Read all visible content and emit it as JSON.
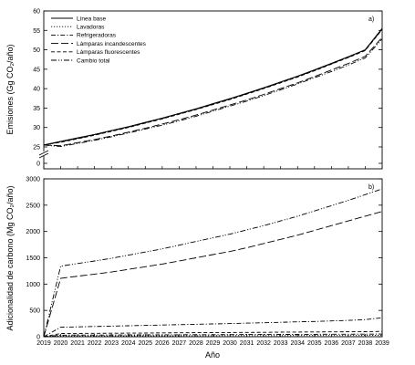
{
  "chart_data": [
    {
      "type": "line",
      "panel_label": "a)",
      "ylabel": "Emisiones (Gg CO₂/año)",
      "xlabel": "",
      "xlim": [
        2019,
        2039
      ],
      "ylim": [
        20,
        60
      ],
      "y_axis_break": true,
      "y_ticks": [
        0,
        25,
        30,
        35,
        40,
        45,
        50,
        55,
        60
      ],
      "legend_position": "top-left",
      "x": [
        2019,
        2020,
        2021,
        2022,
        2023,
        2024,
        2025,
        2026,
        2027,
        2028,
        2029,
        2030,
        2031,
        2032,
        2033,
        2034,
        2035,
        2036,
        2037,
        2038,
        2039
      ],
      "series": [
        {
          "name": "Línea base",
          "dash": "solid",
          "values": [
            25.5,
            26.4,
            27.3,
            28.2,
            29.2,
            30.2,
            31.3,
            32.4,
            33.6,
            34.8,
            36.1,
            37.4,
            38.8,
            40.2,
            41.7,
            43.2,
            44.8,
            46.5,
            48.2,
            50.0,
            55.5
          ]
        },
        {
          "name": "Lavadoras",
          "dash": "dot",
          "values": [
            25.5,
            26.4,
            27.3,
            28.2,
            29.2,
            30.2,
            31.3,
            32.4,
            33.6,
            34.8,
            36.1,
            37.4,
            38.8,
            40.2,
            41.7,
            43.2,
            44.8,
            46.5,
            48.2,
            50.0,
            55.4
          ]
        },
        {
          "name": "Refrigeradoras",
          "dash": "dashdot",
          "values": [
            25.5,
            26.3,
            27.2,
            28.1,
            29.1,
            30.1,
            31.2,
            32.3,
            33.5,
            34.7,
            36.0,
            37.3,
            38.7,
            40.1,
            41.6,
            43.1,
            44.7,
            46.4,
            48.1,
            49.9,
            55.3
          ]
        },
        {
          "name": "Lámparas incandescentes",
          "dash": "longdash",
          "values": [
            25.5,
            25.3,
            26.1,
            26.9,
            27.8,
            28.8,
            29.8,
            30.9,
            32.0,
            33.2,
            34.5,
            35.8,
            37.1,
            38.5,
            40.0,
            41.5,
            43.1,
            44.8,
            46.5,
            48.3,
            53.2
          ]
        },
        {
          "name": "Lámparas fluorescentes",
          "dash": "dash",
          "values": [
            25.5,
            26.2,
            27.1,
            28.0,
            29.0,
            30.0,
            31.1,
            32.2,
            33.4,
            34.6,
            35.9,
            37.2,
            38.6,
            40.0,
            41.5,
            43.0,
            44.6,
            46.3,
            48.0,
            49.8,
            55.2
          ]
        },
        {
          "name": "Cambio total",
          "dash": "dashdotdot",
          "values": [
            25.5,
            25.1,
            25.9,
            26.7,
            27.6,
            28.6,
            29.6,
            30.6,
            31.7,
            32.9,
            34.2,
            35.5,
            36.8,
            38.2,
            39.7,
            41.2,
            42.8,
            44.4,
            46.1,
            47.9,
            52.8
          ]
        }
      ]
    },
    {
      "type": "line",
      "panel_label": "b)",
      "ylabel": "Adicionalidad de carbono (Mg CO₂/año)",
      "xlabel": "Año",
      "xlim": [
        2019,
        2039
      ],
      "ylim": [
        0,
        3000
      ],
      "y_ticks": [
        0,
        500,
        1000,
        1500,
        2000,
        2500,
        3000
      ],
      "x_ticks": [
        2019,
        2020,
        2021,
        2022,
        2023,
        2024,
        2025,
        2026,
        2027,
        2028,
        2029,
        2030,
        2031,
        2032,
        2033,
        2034,
        2035,
        2036,
        2037,
        2038,
        2039
      ],
      "x": [
        2019,
        2020,
        2021,
        2022,
        2023,
        2024,
        2025,
        2026,
        2027,
        2028,
        2029,
        2030,
        2031,
        2032,
        2033,
        2034,
        2035,
        2036,
        2037,
        2038,
        2039
      ],
      "series": [
        {
          "dash": "dot",
          "values": [
            0,
            15,
            15,
            16,
            16,
            17,
            17,
            18,
            18,
            19,
            19,
            20,
            20,
            21,
            21,
            22,
            22,
            23,
            23,
            24,
            25
          ]
        },
        {
          "dash": "dashdot",
          "values": [
            0,
            30,
            31,
            32,
            33,
            34,
            35,
            36,
            37,
            38,
            39,
            40,
            41,
            42,
            43,
            44,
            45,
            46,
            47,
            48,
            50
          ]
        },
        {
          "dash": "longdash",
          "values": [
            0,
            1110,
            1150,
            1190,
            1230,
            1280,
            1330,
            1380,
            1440,
            1500,
            1560,
            1620,
            1690,
            1770,
            1850,
            1930,
            2020,
            2110,
            2200,
            2290,
            2380
          ]
        },
        {
          "dash": "dash",
          "values": [
            0,
            60,
            62,
            64,
            66,
            68,
            70,
            72,
            74,
            76,
            78,
            80,
            82,
            84,
            86,
            88,
            90,
            92,
            94,
            96,
            100
          ]
        },
        {
          "dash": "dashdotdot",
          "values": [
            0,
            1340,
            1390,
            1440,
            1490,
            1550,
            1610,
            1670,
            1740,
            1810,
            1880,
            1950,
            2030,
            2110,
            2200,
            2290,
            2390,
            2490,
            2590,
            2700,
            2810
          ]
        },
        {
          "dash": "dashdot",
          "values": [
            0,
            180,
            187,
            194,
            201,
            208,
            215,
            222,
            229,
            236,
            243,
            250,
            258,
            266,
            274,
            282,
            290,
            300,
            310,
            325,
            360
          ]
        }
      ]
    }
  ]
}
